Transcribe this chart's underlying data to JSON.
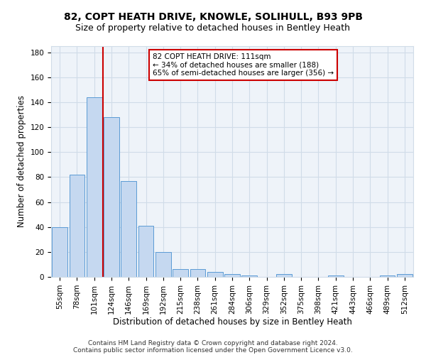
{
  "title1": "82, COPT HEATH DRIVE, KNOWLE, SOLIHULL, B93 9PB",
  "title2": "Size of property relative to detached houses in Bentley Heath",
  "xlabel": "Distribution of detached houses by size in Bentley Heath",
  "ylabel": "Number of detached properties",
  "footnote1": "Contains HM Land Registry data © Crown copyright and database right 2024.",
  "footnote2": "Contains public sector information licensed under the Open Government Licence v3.0.",
  "bar_categories": [
    "55sqm",
    "78sqm",
    "101sqm",
    "124sqm",
    "146sqm",
    "169sqm",
    "192sqm",
    "215sqm",
    "238sqm",
    "261sqm",
    "284sqm",
    "306sqm",
    "329sqm",
    "352sqm",
    "375sqm",
    "398sqm",
    "421sqm",
    "443sqm",
    "466sqm",
    "489sqm",
    "512sqm"
  ],
  "bar_values": [
    40,
    82,
    144,
    128,
    77,
    41,
    20,
    6,
    6,
    4,
    2,
    1,
    0,
    2,
    0,
    0,
    1,
    0,
    0,
    1,
    2
  ],
  "bar_color": "#c5d8f0",
  "bar_edge_color": "#5b9bd5",
  "vline_color": "#cc0000",
  "annotation_line1": "82 COPT HEATH DRIVE: 111sqm",
  "annotation_line2": "← 34% of detached houses are smaller (188)",
  "annotation_line3": "65% of semi-detached houses are larger (356) →",
  "annotation_box_color": "#ffffff",
  "annotation_box_edge": "#cc0000",
  "ylim": [
    0,
    185
  ],
  "yticks": [
    0,
    20,
    40,
    60,
    80,
    100,
    120,
    140,
    160,
    180
  ],
  "grid_color": "#d0dce8",
  "bg_color": "#eef3f9",
  "title1_fontsize": 10,
  "title2_fontsize": 9,
  "xlabel_fontsize": 8.5,
  "ylabel_fontsize": 8.5,
  "tick_fontsize": 7.5,
  "annot_fontsize": 7.5
}
